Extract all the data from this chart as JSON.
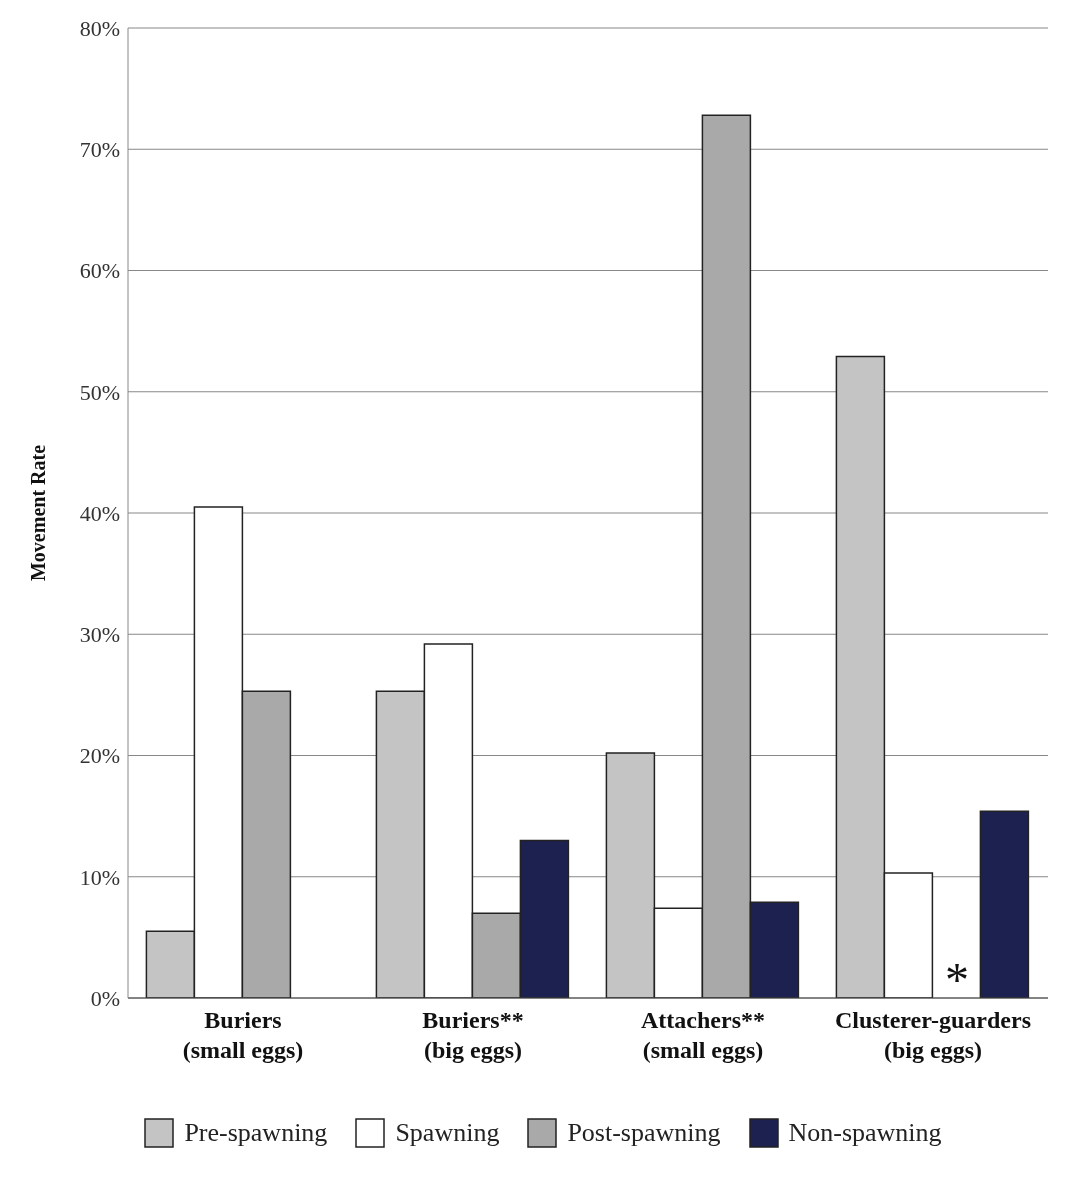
{
  "chart_data": {
    "type": "bar",
    "ylabel": "Movement Rate",
    "categories": [
      "Buriers (small eggs)",
      "Buriers** (big eggs)",
      "Attachers** (small eggs)",
      "Clusterer-guarders (big eggs)"
    ],
    "series": [
      {
        "name": "Pre-spawning",
        "color": "#c4c4c4",
        "values": [
          5.5,
          25.3,
          20.2,
          52.9
        ]
      },
      {
        "name": "Spawning",
        "color": "#ffffff",
        "values": [
          40.5,
          29.2,
          7.4,
          10.3
        ]
      },
      {
        "name": "Post-spawning",
        "color": "#a9a9a9",
        "values": [
          25.3,
          7,
          72.8,
          null
        ]
      },
      {
        "name": "Non-spawning",
        "color": "#1c2150",
        "values": [
          null,
          13,
          7.9,
          15.4
        ]
      }
    ],
    "ylim": [
      0,
      80
    ],
    "yticks": [
      {
        "value": 0,
        "label": "0%"
      },
      {
        "value": 10,
        "label": "10%"
      },
      {
        "value": 20,
        "label": "20%"
      },
      {
        "value": 30,
        "label": "30%"
      },
      {
        "value": 40,
        "label": "40%"
      },
      {
        "value": 50,
        "label": "50%"
      },
      {
        "value": 60,
        "label": "60%"
      },
      {
        "value": 70,
        "label": "70%"
      },
      {
        "value": 80,
        "label": "80%"
      }
    ],
    "grid": "y",
    "legend": "bottom",
    "annotations": [
      {
        "text": "*",
        "x": "Clusterer-guarders (big eggs)",
        "y": 0
      }
    ]
  }
}
